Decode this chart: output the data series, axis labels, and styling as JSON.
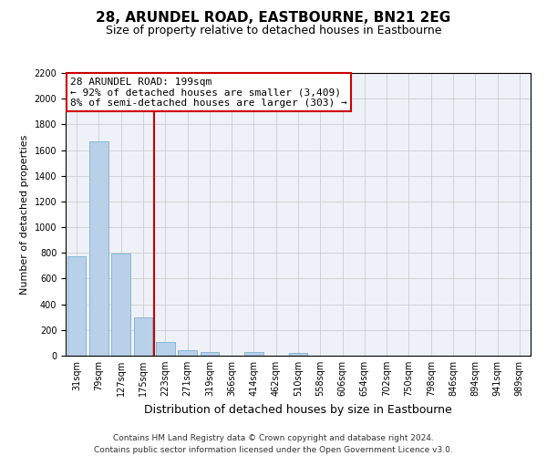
{
  "title": "28, ARUNDEL ROAD, EASTBOURNE, BN21 2EG",
  "subtitle": "Size of property relative to detached houses in Eastbourne",
  "xlabel": "Distribution of detached houses by size in Eastbourne",
  "ylabel": "Number of detached properties",
  "categories": [
    "31sqm",
    "79sqm",
    "127sqm",
    "175sqm",
    "223sqm",
    "271sqm",
    "319sqm",
    "366sqm",
    "414sqm",
    "462sqm",
    "510sqm",
    "558sqm",
    "606sqm",
    "654sqm",
    "702sqm",
    "750sqm",
    "798sqm",
    "846sqm",
    "894sqm",
    "941sqm",
    "989sqm"
  ],
  "values": [
    775,
    1670,
    795,
    300,
    110,
    40,
    25,
    0,
    25,
    0,
    20,
    0,
    0,
    0,
    0,
    0,
    0,
    0,
    0,
    0,
    0
  ],
  "bar_color": "#b8d0e8",
  "bar_edge_color": "#7aafd4",
  "grid_color": "#cccccc",
  "background_color": "#ffffff",
  "plot_background": "#eef2f8",
  "vline_x": 3.5,
  "vline_color": "#cc0000",
  "annotation_line1": "28 ARUNDEL ROAD: 199sqm",
  "annotation_line2": "← 92% of detached houses are smaller (3,409)",
  "annotation_line3": "8% of semi-detached houses are larger (303) →",
  "annotation_box_color": "#cc0000",
  "ylim": [
    0,
    2200
  ],
  "yticks": [
    0,
    200,
    400,
    600,
    800,
    1000,
    1200,
    1400,
    1600,
    1800,
    2000,
    2200
  ],
  "footer_line1": "Contains HM Land Registry data © Crown copyright and database right 2024.",
  "footer_line2": "Contains public sector information licensed under the Open Government Licence v3.0.",
  "title_fontsize": 11,
  "subtitle_fontsize": 9,
  "xlabel_fontsize": 9,
  "ylabel_fontsize": 8,
  "tick_fontsize": 7,
  "footer_fontsize": 6.5,
  "annotation_fontsize": 8
}
